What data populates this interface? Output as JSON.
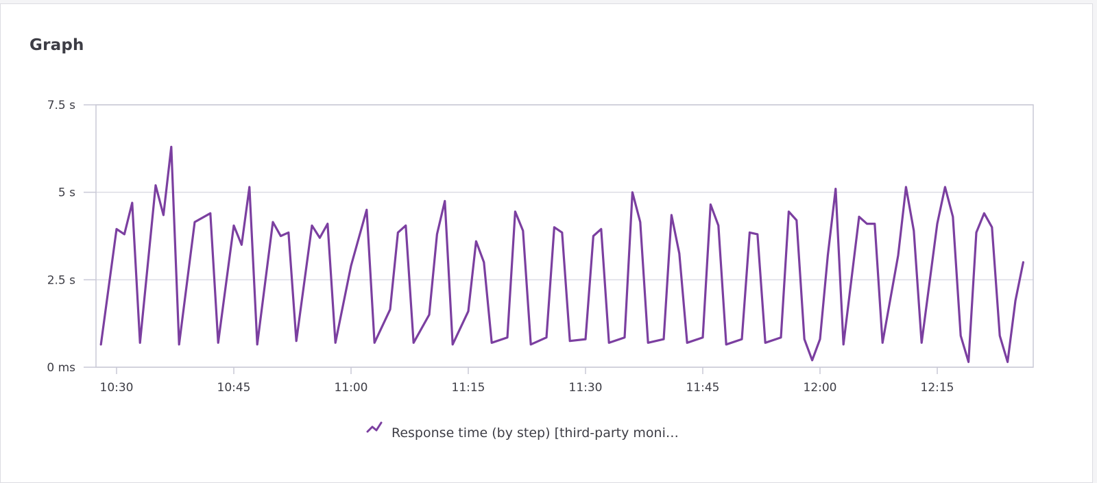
{
  "panel": {
    "title": "Graph"
  },
  "chart_data": {
    "type": "line",
    "title": "",
    "xlabel": "",
    "ylabel": "",
    "ylim": [
      0,
      7.5
    ],
    "y_unit": "s",
    "y_ticks": [
      {
        "value": 0,
        "label": "0 ms"
      },
      {
        "value": 2.5,
        "label": "2.5 s"
      },
      {
        "value": 5,
        "label": "5 s"
      },
      {
        "value": 7.5,
        "label": "7.5 s"
      }
    ],
    "x_ticks": [
      "10:30",
      "10:45",
      "11:00",
      "11:15",
      "11:30",
      "11:45",
      "12:00",
      "12:15"
    ],
    "xlim": [
      "10:28",
      "12:27"
    ],
    "grid": true,
    "legend_position": "bottom-center",
    "series": [
      {
        "name": "Response time (by step) [third-party moni…",
        "color": "#7b3fa0",
        "points": [
          [
            "10:28",
            0.65
          ],
          [
            "10:30",
            3.95
          ],
          [
            "10:31",
            3.8
          ],
          [
            "10:32",
            4.7
          ],
          [
            "10:33",
            0.7
          ],
          [
            "10:35",
            5.2
          ],
          [
            "10:36",
            4.35
          ],
          [
            "10:37",
            6.3
          ],
          [
            "10:38",
            0.65
          ],
          [
            "10:40",
            4.15
          ],
          [
            "10:42",
            4.4
          ],
          [
            "10:43",
            0.7
          ],
          [
            "10:45",
            4.05
          ],
          [
            "10:46",
            3.5
          ],
          [
            "10:47",
            5.15
          ],
          [
            "10:48",
            0.65
          ],
          [
            "10:50",
            4.15
          ],
          [
            "10:51",
            3.75
          ],
          [
            "10:52",
            3.85
          ],
          [
            "10:53",
            0.75
          ],
          [
            "10:55",
            4.05
          ],
          [
            "10:56",
            3.7
          ],
          [
            "10:57",
            4.1
          ],
          [
            "10:58",
            0.7
          ],
          [
            "11:00",
            2.9
          ],
          [
            "11:02",
            4.5
          ],
          [
            "11:03",
            0.7
          ],
          [
            "11:05",
            1.65
          ],
          [
            "11:06",
            3.85
          ],
          [
            "11:07",
            4.05
          ],
          [
            "11:08",
            0.7
          ],
          [
            "11:10",
            1.5
          ],
          [
            "11:11",
            3.8
          ],
          [
            "11:12",
            4.75
          ],
          [
            "11:13",
            0.65
          ],
          [
            "11:15",
            1.6
          ],
          [
            "11:16",
            3.6
          ],
          [
            "11:17",
            3.0
          ],
          [
            "11:18",
            0.7
          ],
          [
            "11:20",
            0.85
          ],
          [
            "11:21",
            4.45
          ],
          [
            "11:22",
            3.9
          ],
          [
            "11:23",
            0.65
          ],
          [
            "11:25",
            0.85
          ],
          [
            "11:26",
            4.0
          ],
          [
            "11:27",
            3.85
          ],
          [
            "11:28",
            0.75
          ],
          [
            "11:30",
            0.8
          ],
          [
            "11:31",
            3.75
          ],
          [
            "11:32",
            3.95
          ],
          [
            "11:33",
            0.7
          ],
          [
            "11:35",
            0.85
          ],
          [
            "11:36",
            5.0
          ],
          [
            "11:37",
            4.15
          ],
          [
            "11:38",
            0.7
          ],
          [
            "11:40",
            0.8
          ],
          [
            "11:41",
            4.35
          ],
          [
            "11:42",
            3.25
          ],
          [
            "11:43",
            0.7
          ],
          [
            "11:45",
            0.85
          ],
          [
            "11:46",
            4.65
          ],
          [
            "11:47",
            4.05
          ],
          [
            "11:48",
            0.65
          ],
          [
            "11:50",
            0.8
          ],
          [
            "11:51",
            3.85
          ],
          [
            "11:52",
            3.8
          ],
          [
            "11:53",
            0.7
          ],
          [
            "11:55",
            0.85
          ],
          [
            "11:56",
            4.45
          ],
          [
            "11:57",
            4.2
          ],
          [
            "11:58",
            0.8
          ],
          [
            "11:59",
            0.2
          ],
          [
            "12:00",
            0.8
          ],
          [
            "12:01",
            3.2
          ],
          [
            "12:02",
            5.1
          ],
          [
            "12:03",
            0.65
          ],
          [
            "12:05",
            4.3
          ],
          [
            "12:06",
            4.1
          ],
          [
            "12:07",
            4.1
          ],
          [
            "12:08",
            0.7
          ],
          [
            "12:10",
            3.2
          ],
          [
            "12:11",
            5.15
          ],
          [
            "12:12",
            3.9
          ],
          [
            "12:13",
            0.7
          ],
          [
            "12:15",
            4.1
          ],
          [
            "12:16",
            5.15
          ],
          [
            "12:17",
            4.3
          ],
          [
            "12:18",
            0.9
          ],
          [
            "12:19",
            0.15
          ],
          [
            "12:20",
            3.85
          ],
          [
            "12:21",
            4.4
          ],
          [
            "12:22",
            4.0
          ],
          [
            "12:23",
            0.9
          ],
          [
            "12:24",
            0.15
          ],
          [
            "12:25",
            1.9
          ],
          [
            "12:26",
            3.0
          ]
        ]
      }
    ]
  }
}
